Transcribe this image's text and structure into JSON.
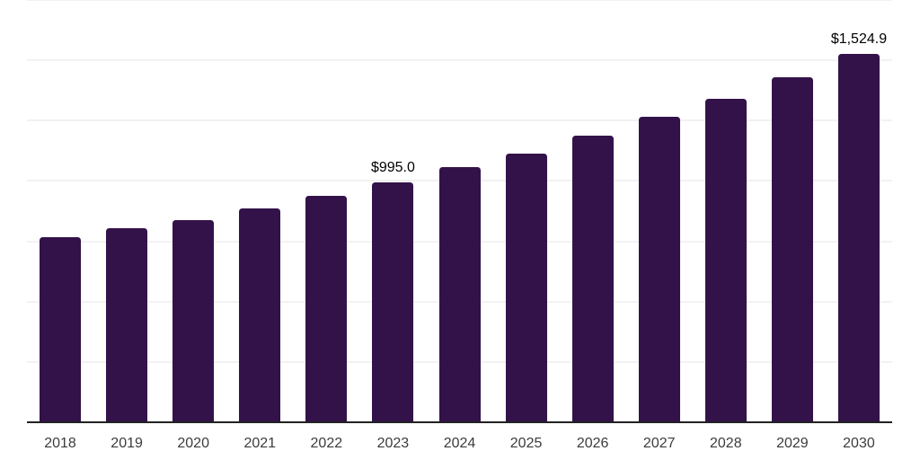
{
  "chart_data": {
    "type": "bar",
    "categories": [
      "2018",
      "2019",
      "2020",
      "2021",
      "2022",
      "2023",
      "2024",
      "2025",
      "2026",
      "2027",
      "2028",
      "2029",
      "2030"
    ],
    "values": [
      766,
      804,
      839,
      888,
      937,
      995.0,
      1056,
      1115,
      1186,
      1265,
      1342,
      1431,
      1524.9
    ],
    "value_labels": [
      "",
      "",
      "",
      "",
      "",
      "$995.0",
      "",
      "",
      "",
      "",
      "",
      "",
      "$1,524.9"
    ],
    "xlabel": "",
    "ylabel": "",
    "ylim": [
      0,
      1750
    ],
    "gridline_interval": 250,
    "grid": true,
    "legend": false,
    "y_axis_labels_visible": false,
    "colors": {
      "bar": "#33124a",
      "axis": "#222222",
      "gridline": "#f2f2f3",
      "value_label": "#000000",
      "tick_label": "#3c3c3c",
      "background": "#ffffff"
    }
  }
}
